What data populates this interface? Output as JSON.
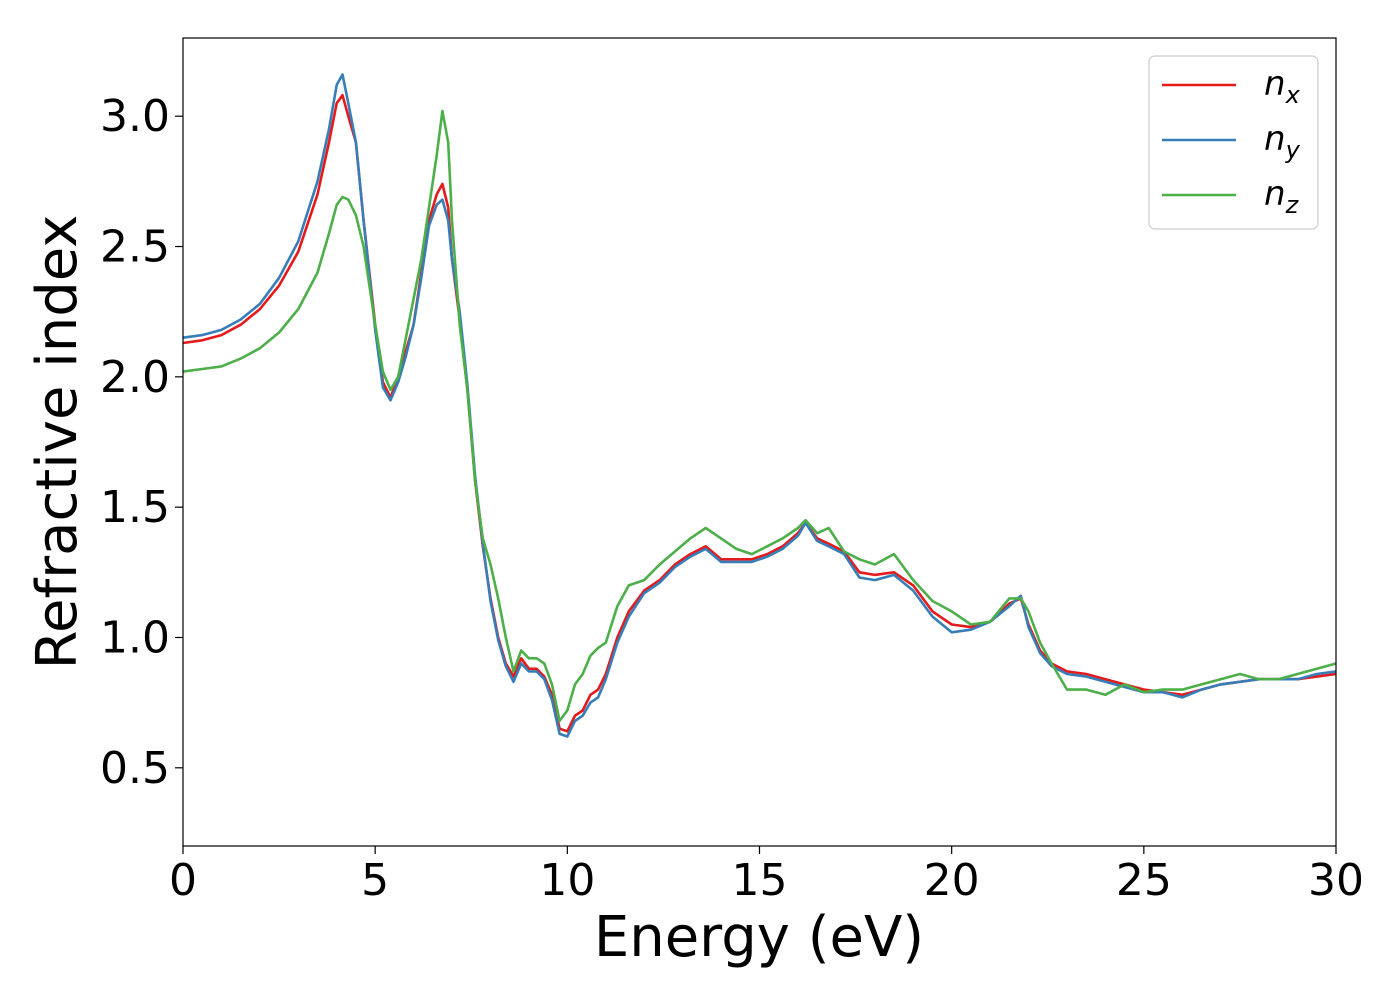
{
  "chart_data": {
    "type": "line",
    "title": "",
    "xlabel": "Energy (eV)",
    "ylabel": "Refractive index",
    "xlim": [
      0,
      30
    ],
    "ylim": [
      0.2,
      3.3
    ],
    "xticks": [
      0,
      5,
      10,
      15,
      20,
      25,
      30
    ],
    "yticks": [
      0.5,
      1.0,
      1.5,
      2.0,
      2.5,
      3.0
    ],
    "xtick_labels": [
      "0",
      "5",
      "10",
      "15",
      "20",
      "25",
      "30"
    ],
    "ytick_labels": [
      "0.5",
      "1.0",
      "1.5",
      "2.0",
      "2.5",
      "3.0"
    ],
    "grid": false,
    "legend_position": "top-right",
    "series": [
      {
        "name": "n",
        "subscript": "x",
        "color": "#e41a1c",
        "x": [
          0,
          0.5,
          1,
          1.5,
          2,
          2.5,
          3,
          3.5,
          3.8,
          4.0,
          4.15,
          4.3,
          4.5,
          4.7,
          5.0,
          5.2,
          5.4,
          5.6,
          5.8,
          6.0,
          6.2,
          6.4,
          6.6,
          6.75,
          6.9,
          7.0,
          7.2,
          7.4,
          7.6,
          7.8,
          8.0,
          8.2,
          8.4,
          8.6,
          8.8,
          9.0,
          9.2,
          9.4,
          9.6,
          9.8,
          10.0,
          10.2,
          10.4,
          10.6,
          10.8,
          11.0,
          11.3,
          11.6,
          12.0,
          12.4,
          12.8,
          13.2,
          13.6,
          14.0,
          14.4,
          14.8,
          15.2,
          15.6,
          16.0,
          16.2,
          16.5,
          16.8,
          17.2,
          17.6,
          18.0,
          18.5,
          19.0,
          19.5,
          20.0,
          20.5,
          21.0,
          21.5,
          21.8,
          22.0,
          22.3,
          22.6,
          23.0,
          23.5,
          24.0,
          24.5,
          25.0,
          25.5,
          26.0,
          26.5,
          27.0,
          27.5,
          28.0,
          28.5,
          29.0,
          29.5,
          30.0
        ],
        "y": [
          2.13,
          2.14,
          2.16,
          2.2,
          2.26,
          2.35,
          2.48,
          2.7,
          2.9,
          3.05,
          3.08,
          3.0,
          2.9,
          2.6,
          2.2,
          1.98,
          1.92,
          2.0,
          2.1,
          2.2,
          2.4,
          2.6,
          2.7,
          2.74,
          2.65,
          2.45,
          2.22,
          1.95,
          1.6,
          1.35,
          1.15,
          1.0,
          0.9,
          0.85,
          0.92,
          0.88,
          0.88,
          0.85,
          0.78,
          0.65,
          0.64,
          0.7,
          0.72,
          0.78,
          0.8,
          0.86,
          1.0,
          1.1,
          1.18,
          1.22,
          1.28,
          1.32,
          1.35,
          1.3,
          1.3,
          1.3,
          1.32,
          1.35,
          1.4,
          1.44,
          1.38,
          1.36,
          1.33,
          1.25,
          1.24,
          1.25,
          1.2,
          1.1,
          1.05,
          1.04,
          1.06,
          1.13,
          1.15,
          1.05,
          0.95,
          0.9,
          0.87,
          0.86,
          0.84,
          0.82,
          0.8,
          0.79,
          0.78,
          0.8,
          0.82,
          0.83,
          0.84,
          0.84,
          0.84,
          0.85,
          0.86
        ]
      },
      {
        "name": "n",
        "subscript": "y",
        "color": "#377eb8",
        "x": [
          0,
          0.5,
          1,
          1.5,
          2,
          2.5,
          3,
          3.5,
          3.8,
          4.0,
          4.15,
          4.3,
          4.5,
          4.7,
          5.0,
          5.2,
          5.4,
          5.6,
          5.8,
          6.0,
          6.2,
          6.4,
          6.6,
          6.75,
          6.9,
          7.0,
          7.2,
          7.4,
          7.6,
          7.8,
          8.0,
          8.2,
          8.4,
          8.6,
          8.8,
          9.0,
          9.2,
          9.4,
          9.6,
          9.8,
          10.0,
          10.2,
          10.4,
          10.6,
          10.8,
          11.0,
          11.3,
          11.6,
          12.0,
          12.4,
          12.8,
          13.2,
          13.6,
          14.0,
          14.4,
          14.8,
          15.2,
          15.6,
          16.0,
          16.2,
          16.5,
          16.8,
          17.2,
          17.6,
          18.0,
          18.5,
          19.0,
          19.5,
          20.0,
          20.5,
          21.0,
          21.5,
          21.8,
          22.0,
          22.3,
          22.6,
          23.0,
          23.5,
          24.0,
          24.5,
          25.0,
          25.5,
          26.0,
          26.5,
          27.0,
          27.5,
          28.0,
          28.5,
          29.0,
          29.5,
          30.0
        ],
        "y": [
          2.15,
          2.16,
          2.18,
          2.22,
          2.28,
          2.38,
          2.52,
          2.75,
          2.95,
          3.12,
          3.16,
          3.05,
          2.9,
          2.6,
          2.18,
          1.96,
          1.91,
          1.98,
          2.08,
          2.2,
          2.38,
          2.58,
          2.66,
          2.68,
          2.6,
          2.45,
          2.25,
          1.97,
          1.62,
          1.36,
          1.14,
          0.99,
          0.89,
          0.83,
          0.9,
          0.87,
          0.87,
          0.84,
          0.76,
          0.63,
          0.62,
          0.68,
          0.7,
          0.75,
          0.77,
          0.84,
          0.98,
          1.08,
          1.17,
          1.21,
          1.27,
          1.31,
          1.34,
          1.29,
          1.29,
          1.29,
          1.31,
          1.34,
          1.39,
          1.44,
          1.37,
          1.35,
          1.32,
          1.23,
          1.22,
          1.24,
          1.18,
          1.08,
          1.02,
          1.03,
          1.06,
          1.12,
          1.16,
          1.04,
          0.94,
          0.89,
          0.86,
          0.85,
          0.83,
          0.81,
          0.79,
          0.79,
          0.77,
          0.8,
          0.82,
          0.83,
          0.84,
          0.84,
          0.84,
          0.86,
          0.87
        ]
      },
      {
        "name": "n",
        "subscript": "z",
        "color": "#4daf4a",
        "x": [
          0,
          0.5,
          1,
          1.5,
          2,
          2.5,
          3,
          3.5,
          3.8,
          4.0,
          4.15,
          4.3,
          4.5,
          4.7,
          5.0,
          5.2,
          5.4,
          5.6,
          5.8,
          6.0,
          6.2,
          6.4,
          6.6,
          6.75,
          6.9,
          7.0,
          7.2,
          7.4,
          7.6,
          7.8,
          8.0,
          8.2,
          8.4,
          8.6,
          8.8,
          9.0,
          9.2,
          9.4,
          9.6,
          9.8,
          10.0,
          10.2,
          10.4,
          10.6,
          10.8,
          11.0,
          11.3,
          11.6,
          12.0,
          12.4,
          12.8,
          13.2,
          13.6,
          14.0,
          14.4,
          14.8,
          15.2,
          15.6,
          16.0,
          16.2,
          16.5,
          16.8,
          17.2,
          17.6,
          18.0,
          18.5,
          19.0,
          19.5,
          20.0,
          20.5,
          21.0,
          21.5,
          21.8,
          22.0,
          22.3,
          22.6,
          23.0,
          23.5,
          24.0,
          24.5,
          25.0,
          25.5,
          26.0,
          26.5,
          27.0,
          27.5,
          28.0,
          28.5,
          29.0,
          29.5,
          30.0
        ],
        "y": [
          2.02,
          2.03,
          2.04,
          2.07,
          2.11,
          2.17,
          2.26,
          2.4,
          2.55,
          2.66,
          2.69,
          2.68,
          2.62,
          2.5,
          2.2,
          2.02,
          1.95,
          2.0,
          2.15,
          2.3,
          2.45,
          2.65,
          2.85,
          3.02,
          2.9,
          2.6,
          2.2,
          1.95,
          1.6,
          1.38,
          1.28,
          1.15,
          1.0,
          0.87,
          0.95,
          0.92,
          0.92,
          0.9,
          0.82,
          0.68,
          0.72,
          0.82,
          0.86,
          0.93,
          0.96,
          0.98,
          1.12,
          1.2,
          1.22,
          1.28,
          1.33,
          1.38,
          1.42,
          1.38,
          1.34,
          1.32,
          1.35,
          1.38,
          1.42,
          1.45,
          1.4,
          1.42,
          1.33,
          1.3,
          1.28,
          1.32,
          1.22,
          1.14,
          1.1,
          1.05,
          1.06,
          1.15,
          1.15,
          1.1,
          0.98,
          0.9,
          0.8,
          0.8,
          0.78,
          0.82,
          0.79,
          0.8,
          0.8,
          0.82,
          0.84,
          0.86,
          0.84,
          0.84,
          0.86,
          0.88,
          0.9
        ]
      }
    ]
  }
}
